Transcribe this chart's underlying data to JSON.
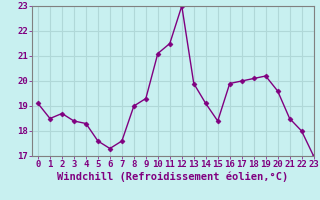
{
  "x": [
    0,
    1,
    2,
    3,
    4,
    5,
    6,
    7,
    8,
    9,
    10,
    11,
    12,
    13,
    14,
    15,
    16,
    17,
    18,
    19,
    20,
    21,
    22,
    23
  ],
  "y": [
    19.1,
    18.5,
    18.7,
    18.4,
    18.3,
    17.6,
    17.3,
    17.6,
    19.0,
    19.3,
    21.1,
    21.5,
    23.0,
    19.9,
    19.1,
    18.4,
    19.9,
    20.0,
    20.1,
    20.2,
    19.6,
    18.5,
    18.0,
    17.0
  ],
  "line_color": "#800080",
  "marker": "D",
  "marker_size": 2.5,
  "line_width": 1.0,
  "bg_color": "#c8f0f0",
  "grid_color": "#b0d8d8",
  "xlabel": "Windchill (Refroidissement éolien,°C)",
  "xlabel_color": "#800080",
  "tick_color": "#800080",
  "spine_color": "#808080",
  "ylim": [
    17,
    23
  ],
  "xlim": [
    -0.5,
    23
  ],
  "yticks": [
    17,
    18,
    19,
    20,
    21,
    22,
    23
  ],
  "xticks": [
    0,
    1,
    2,
    3,
    4,
    5,
    6,
    7,
    8,
    9,
    10,
    11,
    12,
    13,
    14,
    15,
    16,
    17,
    18,
    19,
    20,
    21,
    22,
    23
  ],
  "xtick_labels": [
    "0",
    "1",
    "2",
    "3",
    "4",
    "5",
    "6",
    "7",
    "8",
    "9",
    "10",
    "11",
    "12",
    "13",
    "14",
    "15",
    "16",
    "17",
    "18",
    "19",
    "20",
    "21",
    "22",
    "23"
  ],
  "ytick_labels": [
    "17",
    "18",
    "19",
    "20",
    "21",
    "22",
    "23"
  ],
  "tick_fontsize": 6.5,
  "xlabel_fontsize": 7.5
}
